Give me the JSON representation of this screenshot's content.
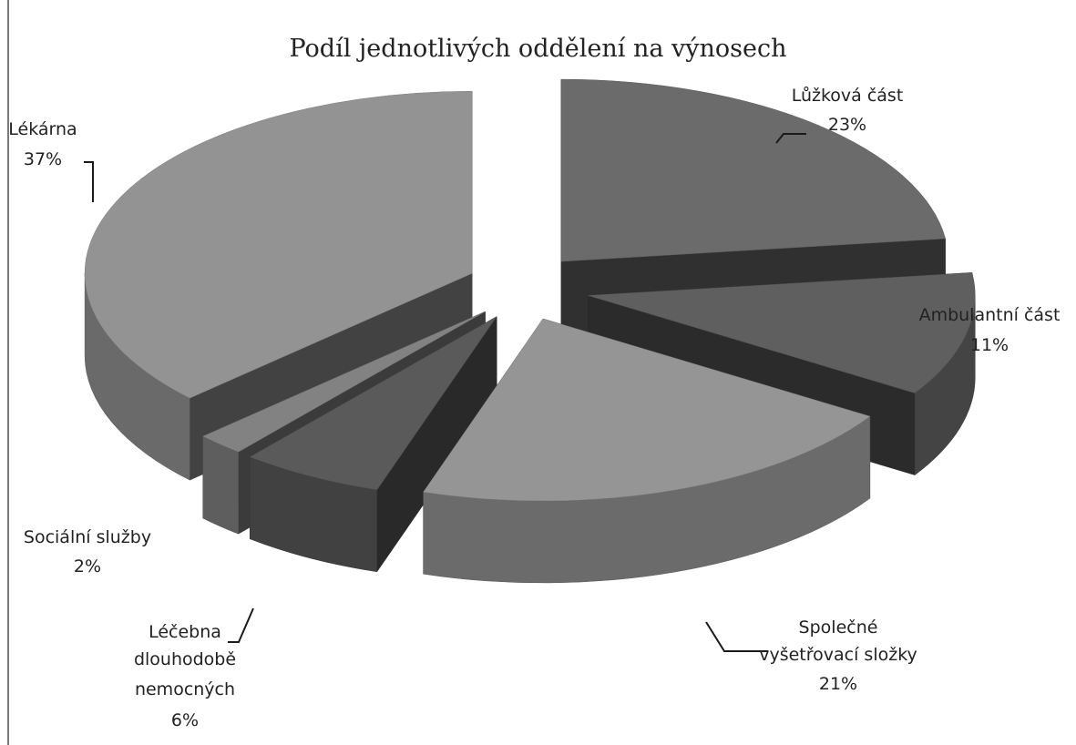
{
  "chart_data": {
    "type": "pie",
    "title": "Podíl jednotlivých oddělení na výnosech",
    "slices": [
      {
        "name": "Lůžková část",
        "value": 23,
        "label": "23%",
        "color": "#6b6b6b"
      },
      {
        "name": "Ambulantní část",
        "value": 11,
        "label": "11%",
        "color": "#5f5f5f"
      },
      {
        "name": "Společné vyšetřovací složky",
        "value": 21,
        "label": "21%",
        "color": "#959595"
      },
      {
        "name": "Léčebna dlouhodobě nemocných",
        "value": 6,
        "label": "6%",
        "color": "#5a5a5a"
      },
      {
        "name": "Sociální služby",
        "value": 2,
        "label": "2%",
        "color": "#828282"
      },
      {
        "name": "Lékárna",
        "value": 37,
        "label": "37%",
        "color": "#939393"
      }
    ],
    "exploded": true,
    "three_d": true,
    "legend": "none"
  }
}
